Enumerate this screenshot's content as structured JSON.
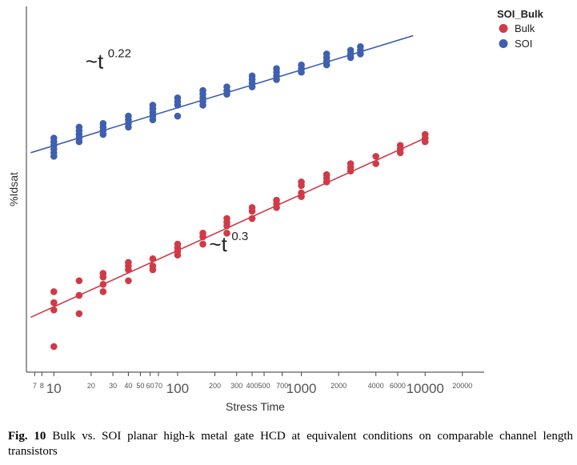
{
  "chart_data": {
    "type": "scatter",
    "xlabel": "Stress Time",
    "ylabel": "%Idsat",
    "x_scale": "log",
    "xlim": [
      6,
      30000
    ],
    "ylim": [
      0,
      1
    ],
    "y_tick_labels_shown": false,
    "grid": false,
    "legend": {
      "title": "SOI_Bulk",
      "position": "top-right"
    },
    "x_ticks": [
      {
        "value": 7,
        "label": "7",
        "major": false
      },
      {
        "value": 8,
        "label": "8",
        "major": false
      },
      {
        "value": 10,
        "label": "10",
        "major": true
      },
      {
        "value": 20,
        "label": "20",
        "major": false
      },
      {
        "value": 30,
        "label": "30",
        "major": false
      },
      {
        "value": 40,
        "label": "40",
        "major": false
      },
      {
        "value": 50,
        "label": "50",
        "major": false
      },
      {
        "value": 60,
        "label": "60",
        "major": false
      },
      {
        "value": 70,
        "label": "70",
        "major": false
      },
      {
        "value": 100,
        "label": "100",
        "major": true
      },
      {
        "value": 200,
        "label": "200",
        "major": false
      },
      {
        "value": 300,
        "label": "300",
        "major": false
      },
      {
        "value": 400,
        "label": "400",
        "major": false
      },
      {
        "value": 500,
        "label": "500",
        "major": false
      },
      {
        "value": 700,
        "label": "700",
        "major": false
      },
      {
        "value": 1000,
        "label": "1000",
        "major": true
      },
      {
        "value": 2000,
        "label": "2000",
        "major": false
      },
      {
        "value": 4000,
        "label": "4000",
        "major": false
      },
      {
        "value": 6000,
        "label": "6000",
        "major": false
      },
      {
        "value": 10000,
        "label": "10000",
        "major": true
      },
      {
        "value": 20000,
        "label": "20000",
        "major": false
      }
    ],
    "series": [
      {
        "name": "Bulk",
        "color": "#d03a47",
        "points": [
          [
            10,
            0.07
          ],
          [
            10,
            0.17
          ],
          [
            10,
            0.19
          ],
          [
            10,
            0.22
          ],
          [
            16,
            0.16
          ],
          [
            16,
            0.21
          ],
          [
            16,
            0.25
          ],
          [
            25,
            0.22
          ],
          [
            25,
            0.24
          ],
          [
            25,
            0.26
          ],
          [
            25,
            0.27
          ],
          [
            40,
            0.25
          ],
          [
            40,
            0.28
          ],
          [
            40,
            0.29
          ],
          [
            40,
            0.3
          ],
          [
            63,
            0.28
          ],
          [
            63,
            0.29
          ],
          [
            63,
            0.31
          ],
          [
            100,
            0.32
          ],
          [
            100,
            0.33
          ],
          [
            100,
            0.34
          ],
          [
            100,
            0.35
          ],
          [
            160,
            0.35
          ],
          [
            160,
            0.37
          ],
          [
            160,
            0.38
          ],
          [
            250,
            0.38
          ],
          [
            250,
            0.4
          ],
          [
            250,
            0.41
          ],
          [
            250,
            0.42
          ],
          [
            400,
            0.42
          ],
          [
            400,
            0.44
          ],
          [
            400,
            0.45
          ],
          [
            630,
            0.45
          ],
          [
            630,
            0.46
          ],
          [
            630,
            0.47
          ],
          [
            1000,
            0.48
          ],
          [
            1000,
            0.49
          ],
          [
            1000,
            0.51
          ],
          [
            1000,
            0.52
          ],
          [
            1600,
            0.52
          ],
          [
            1600,
            0.53
          ],
          [
            1600,
            0.54
          ],
          [
            2500,
            0.55
          ],
          [
            2500,
            0.56
          ],
          [
            2500,
            0.57
          ],
          [
            4000,
            0.57
          ],
          [
            4000,
            0.59
          ],
          [
            6300,
            0.6
          ],
          [
            6300,
            0.61
          ],
          [
            6300,
            0.62
          ],
          [
            10000,
            0.63
          ],
          [
            10000,
            0.64
          ],
          [
            10000,
            0.65
          ]
        ],
        "fit": {
          "x": [
            6.5,
            10000
          ],
          "y": [
            0.15,
            0.64
          ],
          "exponent_label": "0.3"
        }
      },
      {
        "name": "SOI",
        "color": "#3f60b0",
        "points": [
          [
            10,
            0.59
          ],
          [
            10,
            0.6
          ],
          [
            10,
            0.61
          ],
          [
            10,
            0.62
          ],
          [
            10,
            0.63
          ],
          [
            10,
            0.64
          ],
          [
            16,
            0.63
          ],
          [
            16,
            0.64
          ],
          [
            16,
            0.65
          ],
          [
            16,
            0.66
          ],
          [
            16,
            0.67
          ],
          [
            25,
            0.65
          ],
          [
            25,
            0.66
          ],
          [
            25,
            0.67
          ],
          [
            25,
            0.68
          ],
          [
            40,
            0.67
          ],
          [
            40,
            0.68
          ],
          [
            40,
            0.69
          ],
          [
            40,
            0.7
          ],
          [
            63,
            0.69
          ],
          [
            63,
            0.7
          ],
          [
            63,
            0.71
          ],
          [
            63,
            0.72
          ],
          [
            63,
            0.73
          ],
          [
            100,
            0.7
          ],
          [
            100,
            0.73
          ],
          [
            100,
            0.74
          ],
          [
            100,
            0.75
          ],
          [
            160,
            0.73
          ],
          [
            160,
            0.74
          ],
          [
            160,
            0.75
          ],
          [
            160,
            0.76
          ],
          [
            160,
            0.77
          ],
          [
            250,
            0.76
          ],
          [
            250,
            0.77
          ],
          [
            250,
            0.78
          ],
          [
            400,
            0.78
          ],
          [
            400,
            0.79
          ],
          [
            400,
            0.8
          ],
          [
            400,
            0.81
          ],
          [
            630,
            0.8
          ],
          [
            630,
            0.81
          ],
          [
            630,
            0.82
          ],
          [
            630,
            0.83
          ],
          [
            1000,
            0.82
          ],
          [
            1000,
            0.83
          ],
          [
            1000,
            0.84
          ],
          [
            1600,
            0.84
          ],
          [
            1600,
            0.85
          ],
          [
            1600,
            0.86
          ],
          [
            1600,
            0.87
          ],
          [
            2500,
            0.86
          ],
          [
            2500,
            0.87
          ],
          [
            2500,
            0.88
          ],
          [
            3000,
            0.87
          ],
          [
            3000,
            0.88
          ],
          [
            3000,
            0.89
          ]
        ],
        "fit": {
          "x": [
            6.5,
            8000
          ],
          "y": [
            0.6,
            0.92
          ],
          "exponent_label": "0.22"
        }
      }
    ],
    "annotations": [
      {
        "text": "~t",
        "exponent": "0.22",
        "series": "SOI"
      },
      {
        "text": "~t",
        "exponent": "0.3",
        "series": "Bulk"
      }
    ]
  },
  "caption": {
    "label": "Fig. 10",
    "text": "Bulk vs. SOI planar high-k metal gate HCD at equivalent conditions on comparable channel length transistors"
  }
}
